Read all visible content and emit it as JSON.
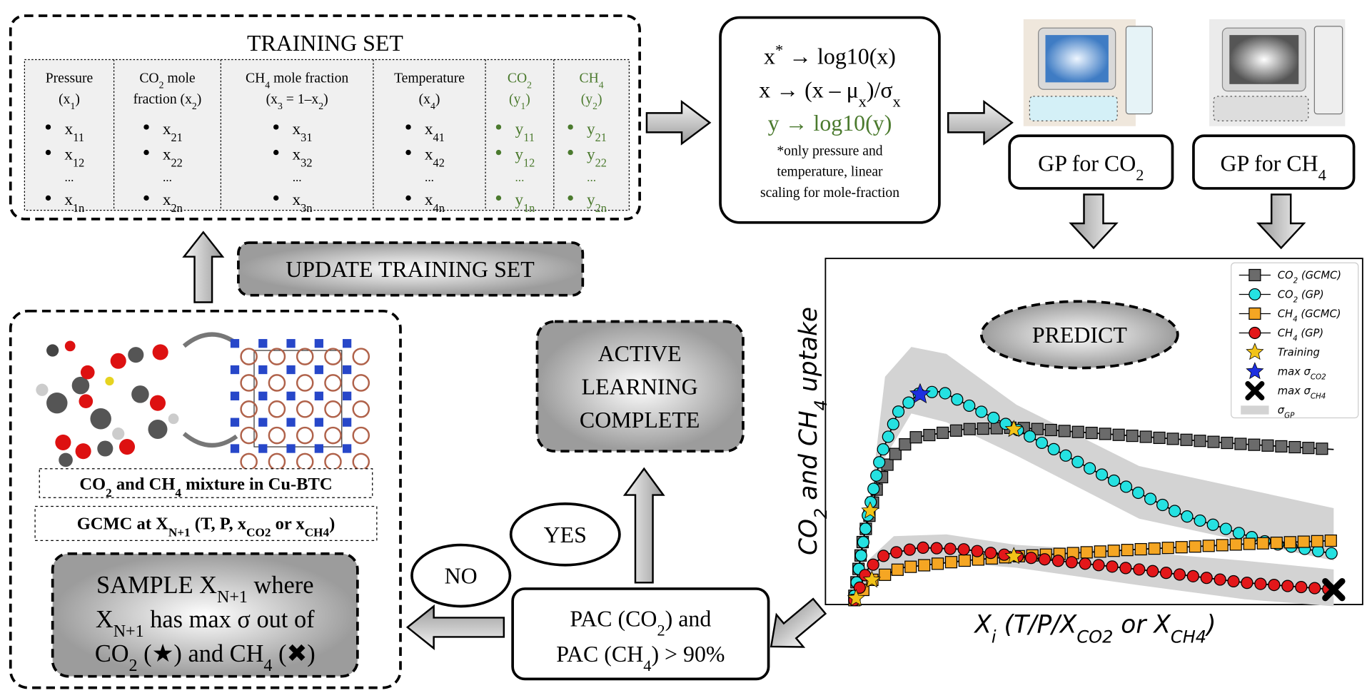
{
  "training_set": {
    "title": "TRAINING SET",
    "columns": [
      {
        "header": [
          [
            "Pressure"
          ],
          [
            "(x",
            "1",
            ")"
          ]
        ],
        "items": [
          [
            "x",
            "11"
          ],
          [
            "x",
            "12"
          ],
          "...",
          [
            "x",
            "1n"
          ]
        ]
      },
      {
        "header": [
          [
            "CO",
            "2",
            " mole"
          ],
          [
            "fraction (x",
            "2",
            ")"
          ]
        ],
        "items": [
          [
            "x",
            "21"
          ],
          [
            "x",
            "22"
          ],
          "...",
          [
            "x",
            "2n"
          ]
        ]
      },
      {
        "header": [
          [
            "CH",
            "4",
            " mole fraction"
          ],
          [
            "(x",
            "3",
            " = 1–x",
            "2",
            ")"
          ]
        ],
        "items": [
          [
            "x",
            "31"
          ],
          [
            "x",
            "32"
          ],
          "...",
          [
            "x",
            "3n"
          ]
        ]
      },
      {
        "header": [
          [
            "Temperature"
          ],
          [
            "(x",
            "4",
            ")"
          ]
        ],
        "items": [
          [
            "x",
            "41"
          ],
          [
            "x",
            "42"
          ],
          "...",
          [
            "x",
            "4n"
          ]
        ]
      },
      {
        "header": [
          [
            "CO",
            "2"
          ],
          [
            "(y",
            "1",
            ")"
          ]
        ],
        "items": [
          [
            "y",
            "11"
          ],
          [
            "y",
            "12"
          ],
          "...",
          [
            "y",
            "1n"
          ]
        ],
        "color": "#4b7a2e"
      },
      {
        "header": [
          [
            "CH",
            "4"
          ],
          [
            "(y",
            "2",
            ")"
          ]
        ],
        "items": [
          [
            "y",
            "21"
          ],
          [
            "y",
            "22"
          ],
          "...",
          [
            "y",
            "2n"
          ]
        ],
        "color": "#4b7a2e"
      }
    ]
  },
  "scaling": {
    "lines": [
      {
        "parts": [
          "x",
          "*",
          " → log10(x)"
        ],
        "shift": "super"
      },
      [
        "x → (x – μ",
        "x",
        ")/σ",
        "x"
      ],
      {
        "parts": [
          "y → log10(y)"
        ],
        "color": "#4b7a2e"
      }
    ],
    "note": [
      "*only pressure and",
      "temperature, linear",
      "scaling for mole-fraction"
    ]
  },
  "gp_co2": [
    "GP for CO",
    "2"
  ],
  "gp_ch4": [
    "GP for CH",
    "4"
  ],
  "plot": {
    "ylabel": [
      "CO",
      "2",
      " and CH",
      "4",
      " uptake"
    ],
    "xlabel": [
      "X",
      "i",
      " (T/P/X",
      "CO2",
      " or X",
      "CH4",
      ")"
    ],
    "annotation": "PREDICT",
    "legend": [
      {
        "label": [
          "CO",
          "2",
          " (GCMC)"
        ],
        "marker": "square",
        "color": "#6b6b6b"
      },
      {
        "label": [
          "CO",
          "2",
          " (GP)"
        ],
        "marker": "circle",
        "color": "#25e1e1"
      },
      {
        "label": [
          "CH",
          "4",
          " (GCMC)"
        ],
        "marker": "square",
        "color": "#f5a623"
      },
      {
        "label": [
          "CH",
          "4",
          " (GP)"
        ],
        "marker": "circle",
        "color": "#e3171a"
      },
      {
        "label": [
          "Training"
        ],
        "marker": "star",
        "color": "#f2c318"
      },
      {
        "label": [
          "max σ",
          "CO2"
        ],
        "marker": "star",
        "color": "#1d2fe0"
      },
      {
        "label": [
          "max σ",
          "CH4"
        ],
        "marker": "cross",
        "color": "#000000"
      },
      {
        "label": [
          "σ",
          "GP"
        ],
        "marker": "band",
        "color": "#d3d3d3"
      }
    ]
  },
  "pac": [
    [
      "PAC (CO",
      "2",
      ") and"
    ],
    [
      "PAC (CH",
      "4",
      ") > 90%"
    ]
  ],
  "active_learning": [
    "ACTIVE",
    "LEARNING",
    "COMPLETE"
  ],
  "yes": "YES",
  "no": "NO",
  "update": "UPDATE TRAINING SET",
  "mixture": [
    "CO",
    "2",
    " and CH",
    "4",
    " mixture in Cu-BTC"
  ],
  "gcmc": [
    "GCMC at X",
    "N+1",
    " (T, P, x",
    "CO2",
    " or x",
    "CH4",
    ")"
  ],
  "sample": [
    [
      "SAMPLE X",
      "N+1",
      " where"
    ],
    [
      "X",
      "N+1",
      " has max σ out of"
    ],
    [
      "CO",
      "2",
      " (★) and CH",
      "4",
      " (✖)"
    ]
  ]
}
